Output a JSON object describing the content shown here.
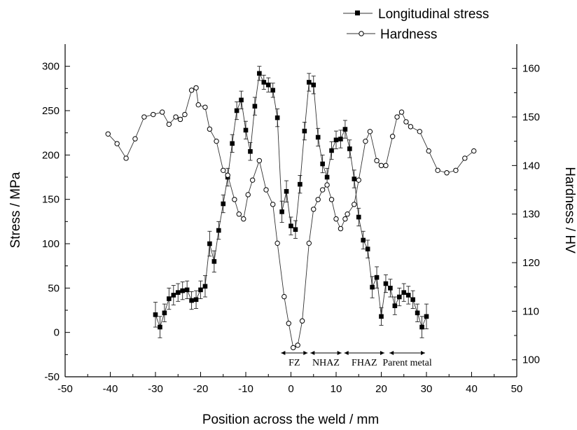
{
  "chart_data": {
    "type": "line",
    "xlabel": "Position across the weld / mm",
    "ylabel": "Stress / MPa",
    "y2label": "Hardness / HV",
    "xlim": [
      -50,
      50
    ],
    "ylim": [
      -50,
      325
    ],
    "y2lim": [
      96.5,
      165
    ],
    "xticks": [
      -50,
      -40,
      -30,
      -20,
      -10,
      0,
      10,
      20,
      30,
      40,
      50
    ],
    "yticks": [
      -50,
      0,
      50,
      100,
      150,
      200,
      250,
      300
    ],
    "y2ticks": [
      100,
      110,
      120,
      130,
      140,
      150,
      160
    ],
    "legend_position": "top-right",
    "series": [
      {
        "name": "Longitudinal stress",
        "axis": "left",
        "marker": "filled-square",
        "color": "#000000",
        "x": [
          -30,
          -29,
          -28,
          -27,
          -26,
          -25,
          -24,
          -23,
          -22,
          -21,
          -20,
          -19,
          -18,
          -17,
          -16,
          -15,
          -14,
          -13,
          -12,
          -11,
          -10,
          -9,
          -8,
          -7,
          -6,
          -5,
          -4,
          -3,
          -2,
          -1,
          0,
          1,
          2,
          3,
          4,
          5,
          6,
          7,
          8,
          9,
          10,
          11,
          12,
          13,
          14,
          15,
          16,
          17,
          18,
          19,
          20,
          21,
          22,
          23,
          24,
          25,
          26,
          27,
          28,
          29,
          30
        ],
        "y": [
          20,
          6,
          22,
          38,
          42,
          45,
          47,
          48,
          36,
          37,
          48,
          52,
          100,
          80,
          115,
          145,
          175,
          213,
          250,
          262,
          228,
          204,
          255,
          292,
          282,
          279,
          273,
          242,
          136,
          159,
          120,
          116,
          167,
          227,
          282,
          279,
          220,
          190,
          175,
          205,
          217,
          218,
          229,
          207,
          173,
          130,
          104,
          94,
          51,
          62,
          18,
          55,
          50,
          30,
          40,
          45,
          42,
          37,
          22,
          6,
          18
        ],
        "err": [
          14,
          12,
          10,
          12,
          11,
          10,
          10,
          10,
          10,
          10,
          10,
          12,
          14,
          12,
          10,
          10,
          10,
          10,
          10,
          10,
          10,
          10,
          10,
          8,
          8,
          8,
          8,
          10,
          12,
          12,
          10,
          10,
          10,
          10,
          10,
          10,
          10,
          10,
          10,
          10,
          10,
          10,
          10,
          10,
          10,
          10,
          10,
          10,
          12,
          12,
          10,
          10,
          10,
          10,
          10,
          10,
          10,
          10,
          10,
          12,
          14
        ]
      },
      {
        "name": "Hardness",
        "axis": "right",
        "marker": "open-circle",
        "color": "#000000",
        "x": [
          -40.5,
          -38.5,
          -36.5,
          -34.5,
          -32.5,
          -30.5,
          -28.5,
          -27,
          -25.5,
          -24.5,
          -23.5,
          -22,
          -21,
          -20.5,
          -19,
          -18,
          -16.5,
          -15,
          -14,
          -12.5,
          -11.5,
          -10.5,
          -9.5,
          -8.5,
          -7,
          -5.5,
          -4,
          -3,
          -1.5,
          -0.5,
          0.5,
          1.5,
          2.5,
          4,
          5,
          6,
          7,
          8,
          9,
          10,
          11,
          12,
          12.5,
          14,
          15,
          16.5,
          17.5,
          19,
          20,
          21,
          22.5,
          23.5,
          24.5,
          25.5,
          26.5,
          28.5,
          30.5,
          32.5,
          34.5,
          36.5,
          38.5,
          40.5
        ],
        "y": [
          146.5,
          144.5,
          141.5,
          145.5,
          150,
          150.5,
          151,
          148.5,
          150,
          149.5,
          150.5,
          155.5,
          156,
          152.5,
          152,
          147.5,
          145,
          139,
          138,
          133,
          130,
          129,
          134,
          137,
          141,
          135,
          132,
          124,
          113,
          107.5,
          102.5,
          103,
          108,
          124,
          131,
          133,
          135,
          136,
          133,
          129,
          127,
          129,
          130,
          132,
          137,
          145,
          147,
          141,
          140,
          140,
          146,
          150,
          151,
          149,
          148,
          147,
          143,
          139,
          138.5,
          139,
          141.5,
          143
        ]
      }
    ],
    "zones": [
      {
        "label": "FZ",
        "x_start": -2.5,
        "x_end": 4
      },
      {
        "label": "NHAZ",
        "x_start": 4,
        "x_end": 11.5
      },
      {
        "label": "FHAZ",
        "x_start": 11.5,
        "x_end": 21
      },
      {
        "label": "Parent metal",
        "x_start": 21.5,
        "x_end": 30
      }
    ]
  }
}
